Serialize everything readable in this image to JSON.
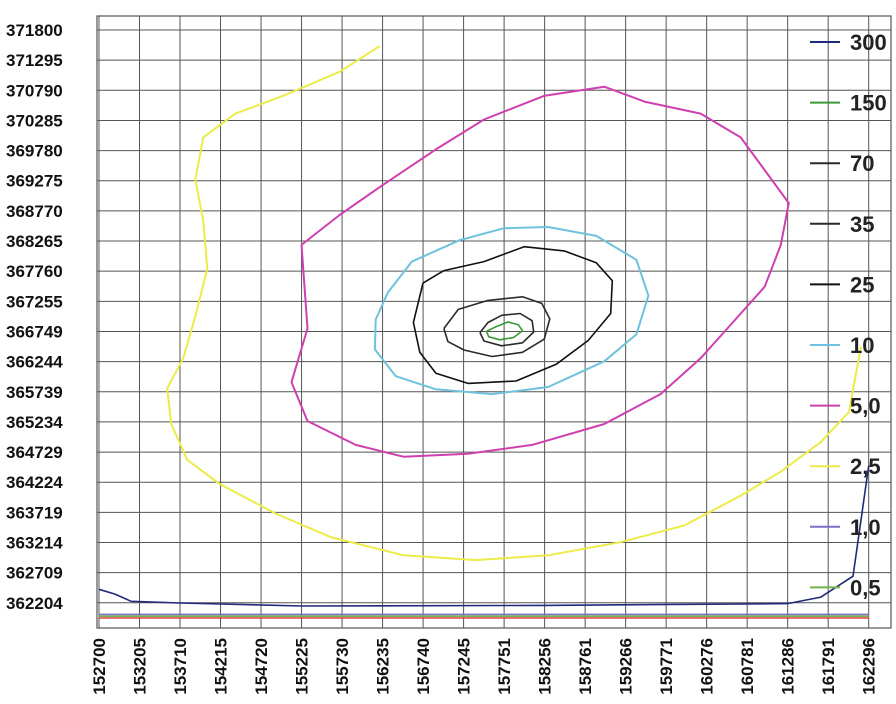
{
  "chart_data": {
    "type": "contour",
    "title": "",
    "xlabel": "",
    "ylabel": "",
    "x_ticks": [
      "152700",
      "153205",
      "153710",
      "154215",
      "154720",
      "155225",
      "155730",
      "156235",
      "156740",
      "157245",
      "157751",
      "158256",
      "158761",
      "159266",
      "159771",
      "160276",
      "160781",
      "161286",
      "161791",
      "162296"
    ],
    "y_ticks": [
      "371800",
      "371295",
      "370790",
      "370285",
      "369780",
      "369275",
      "368770",
      "368265",
      "367760",
      "367255",
      "366749",
      "366244",
      "365739",
      "365234",
      "364729",
      "364224",
      "363719",
      "363214",
      "362709",
      "362204"
    ],
    "xlim": [
      152700,
      162296
    ],
    "ylim": [
      362204,
      371800
    ],
    "grid": true,
    "legend_position": "right",
    "series": [
      {
        "name": "300",
        "color": "#1f2a7a",
        "points": [
          [
            152700,
            362430
          ],
          [
            152900,
            362350
          ],
          [
            153100,
            362230
          ],
          [
            153710,
            362200
          ],
          [
            155225,
            362150
          ],
          [
            158256,
            362160
          ],
          [
            161286,
            362190
          ],
          [
            161700,
            362300
          ],
          [
            162100,
            362650
          ],
          [
            162296,
            364500
          ]
        ]
      },
      {
        "name": "150",
        "color": "#3a9a3a",
        "points": [
          [
            157530,
            366750
          ],
          [
            157650,
            366830
          ],
          [
            157800,
            366910
          ],
          [
            157930,
            366860
          ],
          [
            157980,
            366760
          ],
          [
            157870,
            366650
          ],
          [
            157700,
            366610
          ],
          [
            157560,
            366660
          ],
          [
            157530,
            366750
          ]
        ]
      },
      {
        "name": "70",
        "color": "#2a2a2a",
        "points": [
          [
            157450,
            366730
          ],
          [
            157550,
            366900
          ],
          [
            157720,
            367020
          ],
          [
            157950,
            367050
          ],
          [
            158100,
            366930
          ],
          [
            158120,
            366740
          ],
          [
            157980,
            366560
          ],
          [
            157720,
            366510
          ],
          [
            157500,
            366590
          ],
          [
            157450,
            366730
          ]
        ]
      },
      {
        "name": "35",
        "color": "#2a2a2a",
        "points": [
          [
            157000,
            366800
          ],
          [
            157180,
            367120
          ],
          [
            157550,
            367270
          ],
          [
            157980,
            367330
          ],
          [
            158220,
            367220
          ],
          [
            158320,
            366960
          ],
          [
            158250,
            366620
          ],
          [
            157980,
            366400
          ],
          [
            157600,
            366330
          ],
          [
            157250,
            366440
          ],
          [
            157050,
            366580
          ],
          [
            157000,
            366800
          ]
        ]
      },
      {
        "name": "25",
        "color": "#111111",
        "points": [
          [
            156740,
            367560
          ],
          [
            157000,
            367770
          ],
          [
            157500,
            367920
          ],
          [
            158000,
            368170
          ],
          [
            158500,
            368100
          ],
          [
            158900,
            367900
          ],
          [
            159100,
            367600
          ],
          [
            159080,
            367050
          ],
          [
            158800,
            366600
          ],
          [
            158400,
            366200
          ],
          [
            157900,
            365920
          ],
          [
            157300,
            365880
          ],
          [
            156900,
            366050
          ],
          [
            156700,
            366400
          ],
          [
            156620,
            366900
          ],
          [
            156740,
            367560
          ]
        ]
      },
      {
        "name": "10",
        "color": "#6fc2dd",
        "points": [
          [
            156300,
            367400
          ],
          [
            156600,
            367920
          ],
          [
            157200,
            368280
          ],
          [
            157751,
            368480
          ],
          [
            158300,
            368500
          ],
          [
            158900,
            368350
          ],
          [
            159400,
            367950
          ],
          [
            159550,
            367350
          ],
          [
            159400,
            366700
          ],
          [
            159000,
            366250
          ],
          [
            158300,
            365820
          ],
          [
            157600,
            365700
          ],
          [
            156900,
            365780
          ],
          [
            156400,
            366000
          ],
          [
            156140,
            366450
          ],
          [
            156150,
            366950
          ],
          [
            156300,
            367400
          ]
        ]
      },
      {
        "name": "5,0",
        "color": "#cf3fb0",
        "points": [
          [
            155225,
            368200
          ],
          [
            155700,
            368700
          ],
          [
            156235,
            369200
          ],
          [
            156900,
            369800
          ],
          [
            157500,
            370300
          ],
          [
            158256,
            370700
          ],
          [
            159000,
            370850
          ],
          [
            159500,
            370600
          ],
          [
            160200,
            370400
          ],
          [
            160700,
            370000
          ],
          [
            161300,
            368900
          ],
          [
            161200,
            368200
          ],
          [
            161000,
            367500
          ],
          [
            160600,
            366900
          ],
          [
            160200,
            366300
          ],
          [
            159700,
            365700
          ],
          [
            159000,
            365200
          ],
          [
            158100,
            364850
          ],
          [
            157300,
            364700
          ],
          [
            156500,
            364650
          ],
          [
            155900,
            364850
          ],
          [
            155300,
            365250
          ],
          [
            155100,
            365900
          ],
          [
            155300,
            366800
          ],
          [
            155225,
            368200
          ]
        ]
      },
      {
        "name": "2,5",
        "color": "#ecec48",
        "points": [
          [
            156200,
            371530
          ],
          [
            155700,
            371100
          ],
          [
            155000,
            370700
          ],
          [
            154400,
            370400
          ],
          [
            154000,
            370000
          ],
          [
            153900,
            369300
          ],
          [
            154000,
            368600
          ],
          [
            154050,
            367800
          ],
          [
            153900,
            367000
          ],
          [
            153750,
            366300
          ],
          [
            153550,
            365800
          ],
          [
            153600,
            365200
          ],
          [
            153800,
            364600
          ],
          [
            154200,
            364200
          ],
          [
            154900,
            363700
          ],
          [
            155600,
            363300
          ],
          [
            156500,
            363000
          ],
          [
            157400,
            362920
          ],
          [
            158300,
            363000
          ],
          [
            159200,
            363220
          ],
          [
            160000,
            363500
          ],
          [
            160700,
            364000
          ],
          [
            161200,
            364400
          ],
          [
            161700,
            364900
          ],
          [
            162050,
            365400
          ],
          [
            162200,
            366500
          ]
        ]
      },
      {
        "name": "1,0",
        "color": "#7d6ec8",
        "points": [
          [
            152700,
            362010
          ],
          [
            162296,
            362010
          ]
        ]
      },
      {
        "name": "0,5",
        "color": "#6fb54c",
        "points": [
          [
            152700,
            361980
          ],
          [
            162296,
            361980
          ]
        ]
      },
      {
        "name": "",
        "color": "#e04040",
        "points": [
          [
            152700,
            361950
          ],
          [
            162296,
            361950
          ]
        ]
      }
    ]
  }
}
